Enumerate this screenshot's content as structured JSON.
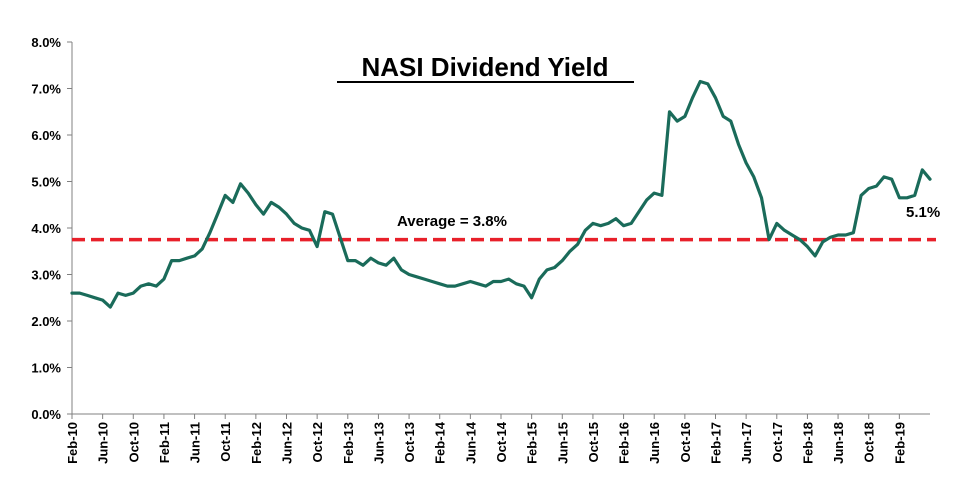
{
  "chart_data": {
    "type": "line",
    "title": "NASI Dividend Yield",
    "y_ticks": [
      "0.0%",
      "1.0%",
      "2.0%",
      "3.0%",
      "4.0%",
      "5.0%",
      "6.0%",
      "7.0%",
      "8.0%"
    ],
    "ylim": [
      0,
      8
    ],
    "x_ticks": [
      "Feb-10",
      "Jun-10",
      "Oct-10",
      "Feb-11",
      "Jun-11",
      "Oct-11",
      "Feb-12",
      "Jun-12",
      "Oct-12",
      "Feb-13",
      "Jun-13",
      "Oct-13",
      "Feb-14",
      "Jun-14",
      "Oct-14",
      "Feb-15",
      "Jun-15",
      "Oct-15",
      "Feb-16",
      "Jun-16",
      "Oct-16",
      "Feb-17",
      "Jun-17",
      "Oct-17",
      "Feb-18",
      "Jun-18",
      "Oct-18",
      "Feb-19"
    ],
    "x_range": [
      "2010-02",
      "2019-06"
    ],
    "grid": false,
    "series": [
      {
        "color": "#1a6b5a",
        "points": [
          [
            "2010-02",
            2.6
          ],
          [
            "2010-03",
            2.6
          ],
          [
            "2010-04",
            2.55
          ],
          [
            "2010-05",
            2.5
          ],
          [
            "2010-06",
            2.45
          ],
          [
            "2010-07",
            2.3
          ],
          [
            "2010-08",
            2.6
          ],
          [
            "2010-09",
            2.55
          ],
          [
            "2010-10",
            2.6
          ],
          [
            "2010-11",
            2.75
          ],
          [
            "2010-12",
            2.8
          ],
          [
            "2011-01",
            2.75
          ],
          [
            "2011-02",
            2.9
          ],
          [
            "2011-03",
            3.3
          ],
          [
            "2011-04",
            3.3
          ],
          [
            "2011-05",
            3.35
          ],
          [
            "2011-06",
            3.4
          ],
          [
            "2011-07",
            3.55
          ],
          [
            "2011-08",
            3.9
          ],
          [
            "2011-09",
            4.3
          ],
          [
            "2011-10",
            4.7
          ],
          [
            "2011-11",
            4.55
          ],
          [
            "2011-12",
            4.95
          ],
          [
            "2012-01",
            4.75
          ],
          [
            "2012-02",
            4.5
          ],
          [
            "2012-03",
            4.3
          ],
          [
            "2012-04",
            4.55
          ],
          [
            "2012-05",
            4.45
          ],
          [
            "2012-06",
            4.3
          ],
          [
            "2012-07",
            4.1
          ],
          [
            "2012-08",
            4.0
          ],
          [
            "2012-09",
            3.95
          ],
          [
            "2012-10",
            3.6
          ],
          [
            "2012-11",
            4.35
          ],
          [
            "2012-12",
            4.3
          ],
          [
            "2013-01",
            3.8
          ],
          [
            "2013-02",
            3.3
          ],
          [
            "2013-03",
            3.3
          ],
          [
            "2013-04",
            3.2
          ],
          [
            "2013-05",
            3.35
          ],
          [
            "2013-06",
            3.25
          ],
          [
            "2013-07",
            3.2
          ],
          [
            "2013-08",
            3.35
          ],
          [
            "2013-09",
            3.1
          ],
          [
            "2013-10",
            3.0
          ],
          [
            "2013-11",
            2.95
          ],
          [
            "2013-12",
            2.9
          ],
          [
            "2014-01",
            2.85
          ],
          [
            "2014-02",
            2.8
          ],
          [
            "2014-03",
            2.75
          ],
          [
            "2014-04",
            2.75
          ],
          [
            "2014-05",
            2.8
          ],
          [
            "2014-06",
            2.85
          ],
          [
            "2014-07",
            2.8
          ],
          [
            "2014-08",
            2.75
          ],
          [
            "2014-09",
            2.85
          ],
          [
            "2014-10",
            2.85
          ],
          [
            "2014-11",
            2.9
          ],
          [
            "2014-12",
            2.8
          ],
          [
            "2015-01",
            2.75
          ],
          [
            "2015-02",
            2.5
          ],
          [
            "2015-03",
            2.9
          ],
          [
            "2015-04",
            3.1
          ],
          [
            "2015-05",
            3.15
          ],
          [
            "2015-06",
            3.3
          ],
          [
            "2015-07",
            3.5
          ],
          [
            "2015-08",
            3.65
          ],
          [
            "2015-09",
            3.95
          ],
          [
            "2015-10",
            4.1
          ],
          [
            "2015-11",
            4.05
          ],
          [
            "2015-12",
            4.1
          ],
          [
            "2016-01",
            4.2
          ],
          [
            "2016-02",
            4.05
          ],
          [
            "2016-03",
            4.1
          ],
          [
            "2016-04",
            4.35
          ],
          [
            "2016-05",
            4.6
          ],
          [
            "2016-06",
            4.75
          ],
          [
            "2016-07",
            4.7
          ],
          [
            "2016-08",
            6.5
          ],
          [
            "2016-09",
            6.3
          ],
          [
            "2016-10",
            6.4
          ],
          [
            "2016-11",
            6.8
          ],
          [
            "2016-12",
            7.15
          ],
          [
            "2017-01",
            7.1
          ],
          [
            "2017-02",
            6.8
          ],
          [
            "2017-03",
            6.4
          ],
          [
            "2017-04",
            6.3
          ],
          [
            "2017-05",
            5.8
          ],
          [
            "2017-06",
            5.4
          ],
          [
            "2017-07",
            5.1
          ],
          [
            "2017-08",
            4.65
          ],
          [
            "2017-09",
            3.75
          ],
          [
            "2017-10",
            4.1
          ],
          [
            "2017-11",
            3.95
          ],
          [
            "2017-12",
            3.85
          ],
          [
            "2018-01",
            3.75
          ],
          [
            "2018-02",
            3.6
          ],
          [
            "2018-03",
            3.4
          ],
          [
            "2018-04",
            3.7
          ],
          [
            "2018-05",
            3.8
          ],
          [
            "2018-06",
            3.85
          ],
          [
            "2018-07",
            3.85
          ],
          [
            "2018-08",
            3.9
          ],
          [
            "2018-09",
            4.7
          ],
          [
            "2018-10",
            4.85
          ],
          [
            "2018-11",
            4.9
          ],
          [
            "2018-12",
            5.1
          ],
          [
            "2019-01",
            5.05
          ],
          [
            "2019-02",
            4.65
          ],
          [
            "2019-03",
            4.65
          ],
          [
            "2019-04",
            4.7
          ],
          [
            "2019-05",
            5.25
          ],
          [
            "2019-06",
            5.05
          ]
        ]
      }
    ],
    "average": {
      "value": 3.75,
      "label": "Average = 3.8%",
      "color": "#e8202a"
    },
    "end_label": "5.1%"
  }
}
